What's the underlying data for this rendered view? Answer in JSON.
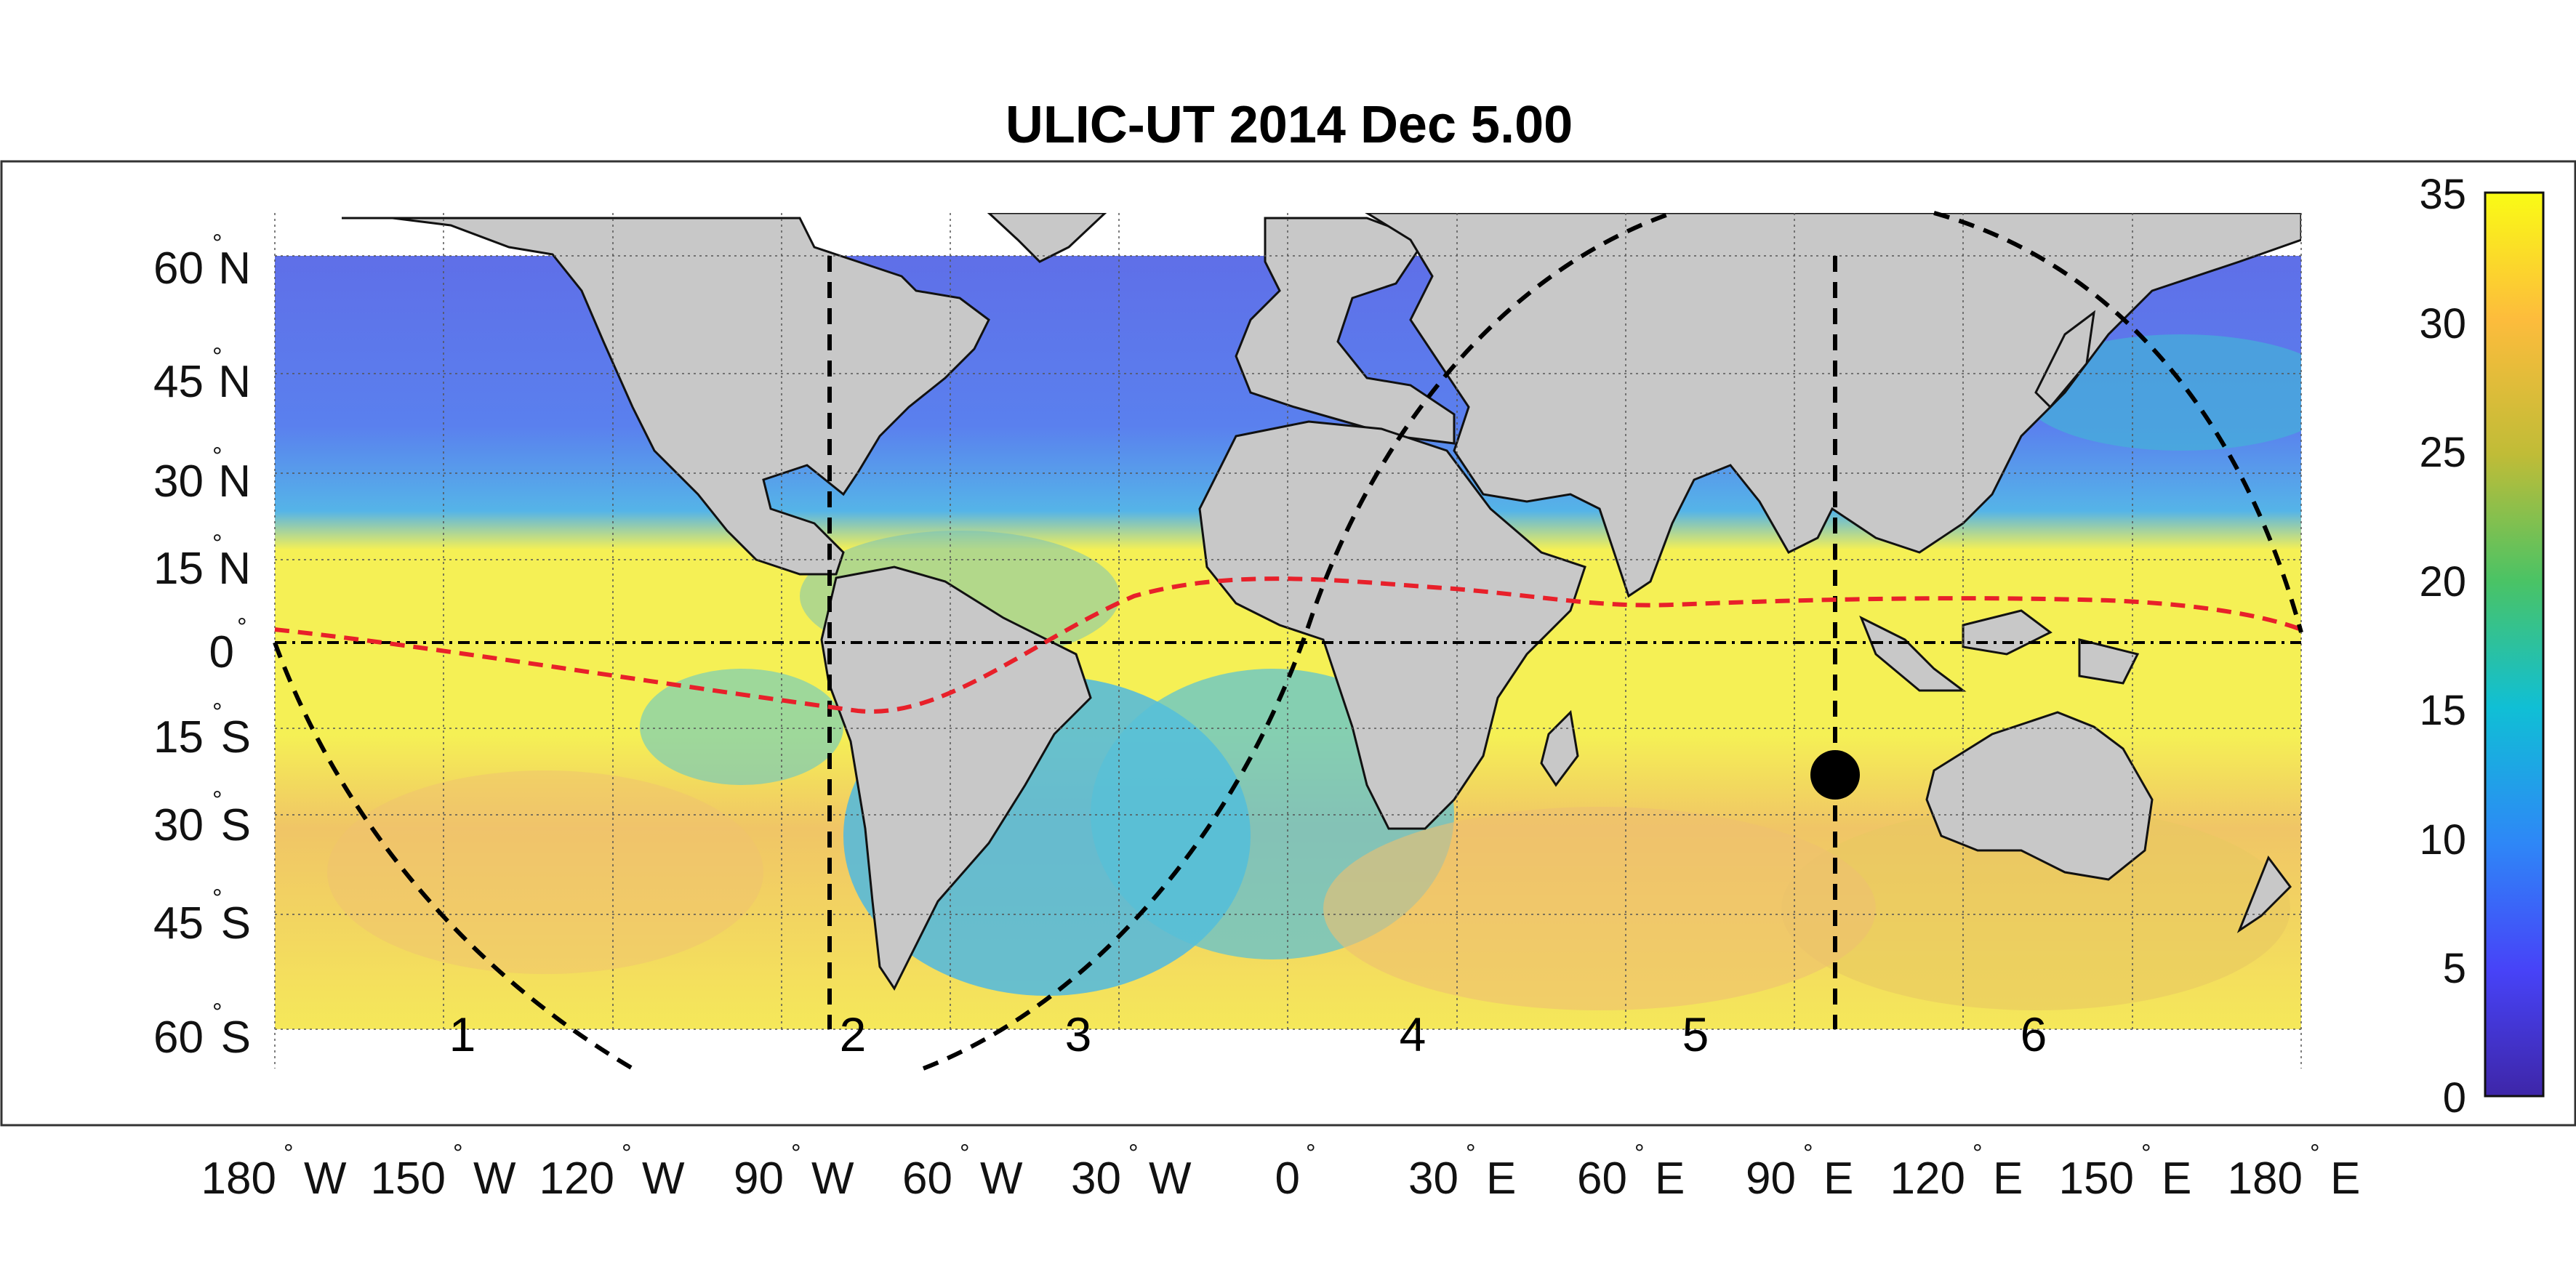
{
  "title": "ULIC-UT 2014 Dec  5.00",
  "lat_labels": [
    {
      "value": 60,
      "text": "60",
      "hemi": "N"
    },
    {
      "value": 45,
      "text": "45",
      "hemi": "N"
    },
    {
      "value": 30,
      "text": "30",
      "hemi": "N"
    },
    {
      "value": 15,
      "text": "15",
      "hemi": "N"
    },
    {
      "value": 0,
      "text": "0",
      "hemi": ""
    },
    {
      "value": -15,
      "text": "15",
      "hemi": "S"
    },
    {
      "value": -30,
      "text": "30",
      "hemi": "S"
    },
    {
      "value": -45,
      "text": "45",
      "hemi": "S"
    },
    {
      "value": -60,
      "text": "60",
      "hemi": "S"
    }
  ],
  "lon_labels": [
    {
      "value": -180,
      "text": "180",
      "hemi": "W"
    },
    {
      "value": -150,
      "text": "150",
      "hemi": "W"
    },
    {
      "value": -120,
      "text": "120",
      "hemi": "W"
    },
    {
      "value": -90,
      "text": "90",
      "hemi": "W"
    },
    {
      "value": -60,
      "text": "60",
      "hemi": "W"
    },
    {
      "value": -30,
      "text": "30",
      "hemi": "W"
    },
    {
      "value": 0,
      "text": "0",
      "hemi": ""
    },
    {
      "value": 30,
      "text": "30",
      "hemi": "E"
    },
    {
      "value": 60,
      "text": "60",
      "hemi": "E"
    },
    {
      "value": 90,
      "text": "90",
      "hemi": "E"
    },
    {
      "value": 120,
      "text": "120",
      "hemi": "E"
    },
    {
      "value": 150,
      "text": "150",
      "hemi": "E"
    },
    {
      "value": 180,
      "text": "180",
      "hemi": "E"
    }
  ],
  "region_labels": [
    {
      "text": "1",
      "lon": -147
    },
    {
      "text": "2",
      "lon": -77
    },
    {
      "text": "3",
      "lon": -37
    },
    {
      "text": "4",
      "lon": 22
    },
    {
      "text": "5",
      "lon": 72
    },
    {
      "text": "6",
      "lon": 132
    }
  ],
  "colorbar": {
    "min": 0,
    "max": 35,
    "ticks": [
      "35",
      "30",
      "25",
      "20",
      "15",
      "10",
      "5",
      "0"
    ],
    "colors": [
      "#3e26a8",
      "#4743f8",
      "#2e87f7",
      "#10bfd5",
      "#4ac365",
      "#c0bc37",
      "#fdbc3c",
      "#f9fb15"
    ]
  },
  "markers": {
    "subsolar_point": {
      "lon": 100,
      "lat": -23
    },
    "meridian_line_lon": [
      -82,
      100
    ],
    "equator_lat": 0
  },
  "colors": {
    "land": "#c8c8c8",
    "terminator": "#000000",
    "dip_equator": "#e8202a",
    "frame": "#333333"
  }
}
